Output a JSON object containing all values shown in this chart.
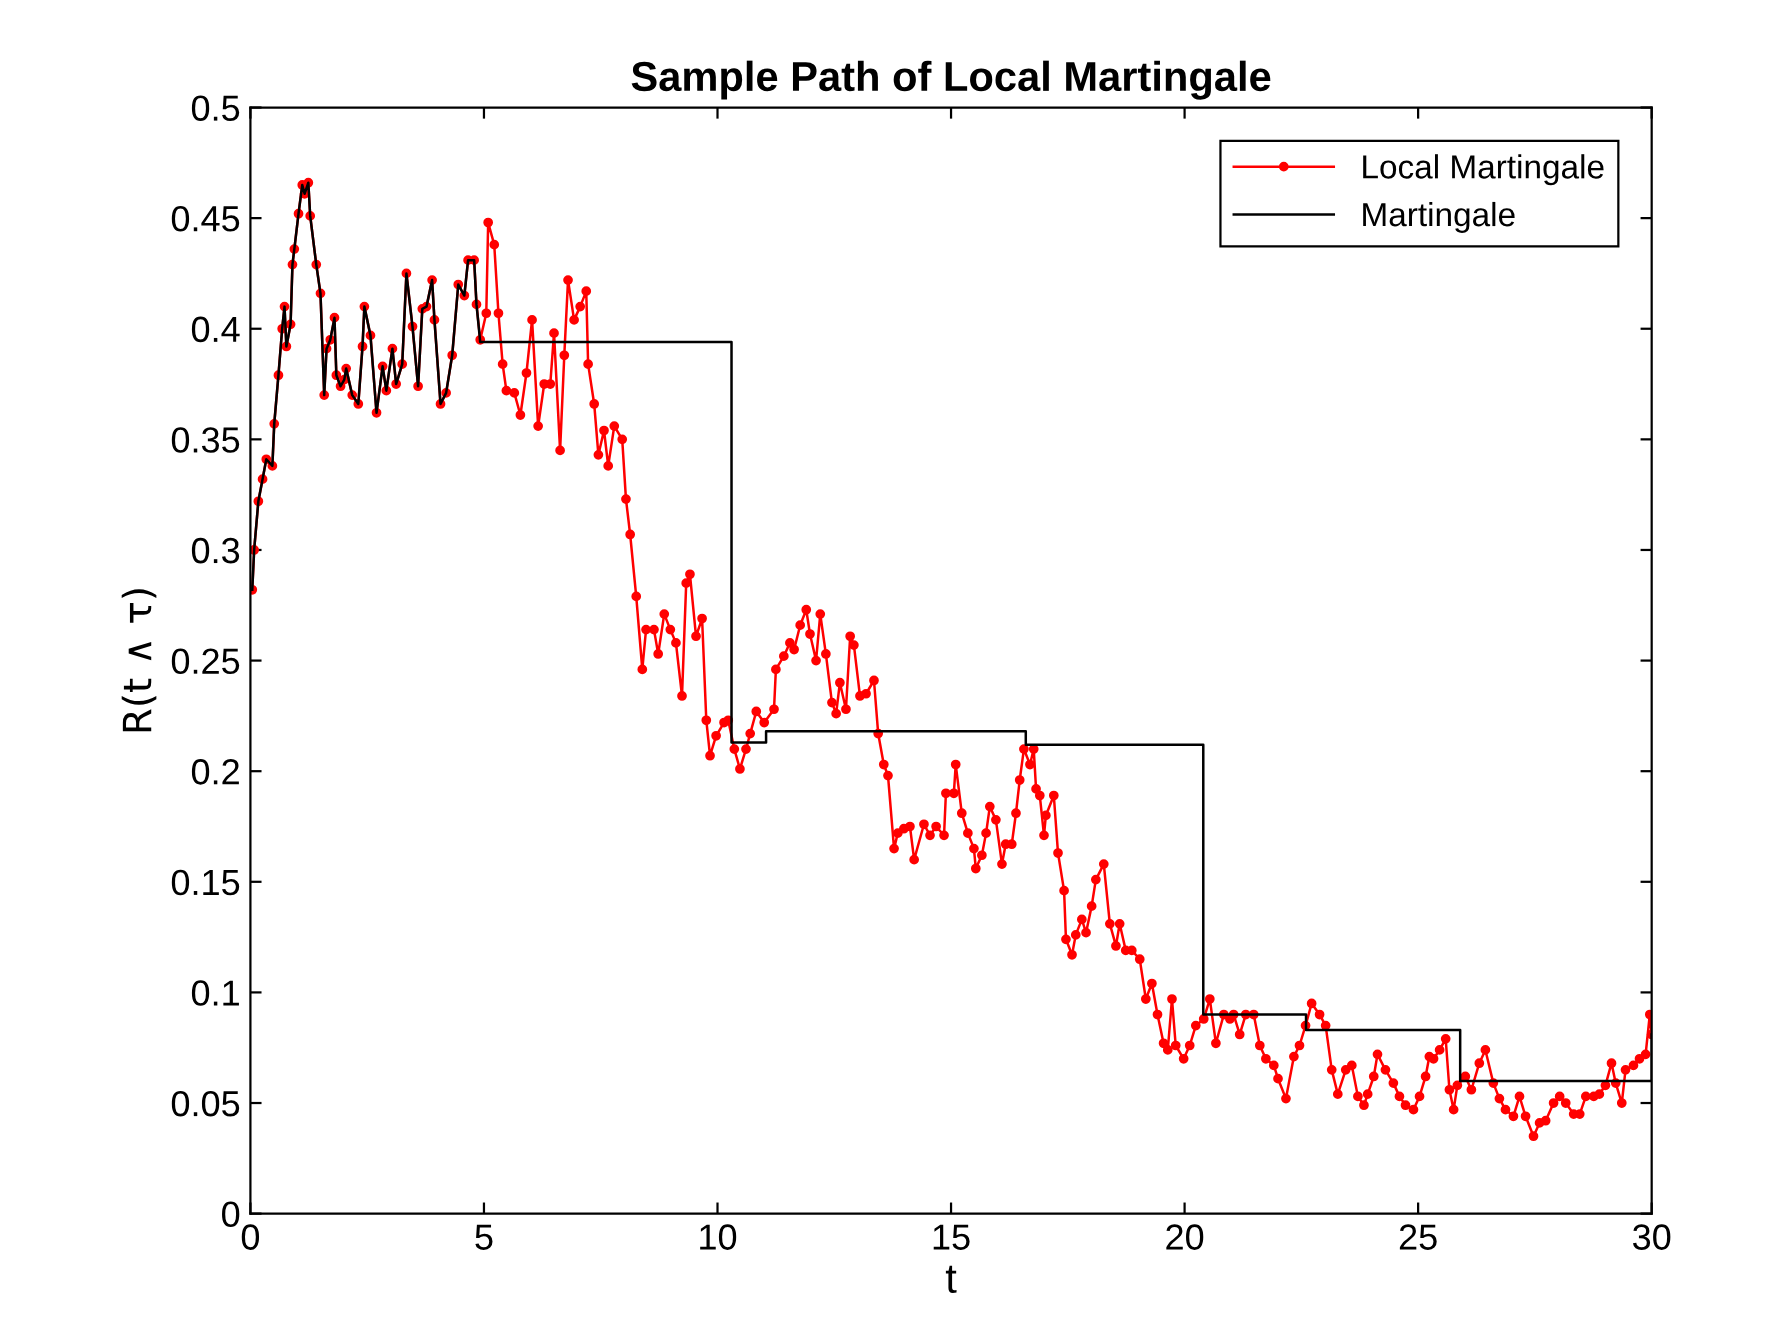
{
  "chart_data": {
    "type": "line",
    "title": "Sample Path of Local Martingale",
    "xlabel": "t",
    "ylabel": "R(t ∧ τ)",
    "xlim": [
      0,
      30
    ],
    "xticks": [
      0,
      5,
      10,
      15,
      20,
      25,
      30
    ],
    "ylim": [
      0,
      0.5
    ],
    "yticks": [
      0,
      0.05,
      0.1,
      0.15,
      0.2,
      0.25,
      0.3,
      0.35,
      0.4,
      0.45,
      0.5
    ],
    "grid": false,
    "legend": "top right",
    "series": [
      {
        "name": "Local Martingale",
        "color": "#ff0000",
        "marker": "circle",
        "line_style": "solid",
        "x": [
          0.04,
          0.08,
          0.17,
          0.26,
          0.34,
          0.47,
          0.51,
          0.6,
          0.68,
          0.73,
          0.77,
          0.86,
          0.9,
          0.94,
          1.03,
          1.11,
          1.16,
          1.24,
          1.28,
          1.41,
          1.5,
          1.58,
          1.63,
          1.71,
          1.8,
          1.84,
          1.93,
          2.01,
          2.05,
          2.18,
          2.31,
          2.4,
          2.44,
          2.57,
          2.7,
          2.83,
          2.91,
          3.04,
          3.12,
          3.25,
          3.34,
          3.47,
          3.59,
          3.68,
          3.77,
          3.89,
          3.94,
          4.07,
          4.19,
          4.32,
          4.45,
          4.58,
          4.66,
          4.79,
          4.84,
          4.92,
          5.05,
          5.09,
          5.22,
          5.31,
          5.4,
          5.48,
          5.65,
          5.78,
          5.91,
          6.03,
          6.16,
          6.29,
          6.42,
          6.5,
          6.63,
          6.72,
          6.8,
          6.93,
          7.06,
          7.19,
          7.23,
          7.36,
          7.45,
          7.57,
          7.66,
          7.79,
          7.96,
          8.04,
          8.13,
          8.26,
          8.39,
          8.47,
          8.64,
          8.73,
          8.86,
          8.99,
          9.11,
          9.24,
          9.33,
          9.41,
          9.54,
          9.67,
          9.76,
          9.84,
          9.97,
          10.14,
          10.23,
          10.36,
          10.48,
          10.61,
          10.7,
          10.83,
          11.0,
          11.21,
          11.25,
          11.42,
          11.55,
          11.64,
          11.77,
          11.9,
          11.98,
          12.11,
          12.2,
          12.32,
          12.45,
          12.54,
          12.62,
          12.75,
          12.84,
          12.92,
          13.05,
          13.18,
          13.35,
          13.44,
          13.56,
          13.65,
          13.78,
          13.86,
          13.99,
          14.12,
          14.21,
          14.42,
          14.55,
          14.68,
          14.85,
          14.89,
          15.06,
          15.1,
          15.23,
          15.36,
          15.49,
          15.53,
          15.66,
          15.75,
          15.83,
          15.96,
          16.09,
          16.17,
          16.3,
          16.39,
          16.47,
          16.56,
          16.69,
          16.77,
          16.82,
          16.9,
          16.99,
          17.03,
          17.2,
          17.29,
          17.42,
          17.46,
          17.59,
          17.67,
          17.8,
          17.89,
          18.01,
          18.1,
          18.27,
          18.4,
          18.53,
          18.61,
          18.74,
          18.87,
          19.04,
          19.17,
          19.3,
          19.42,
          19.55,
          19.64,
          19.73,
          19.81,
          19.98,
          20.11,
          20.24,
          20.41,
          20.54,
          20.67,
          20.84,
          20.97,
          21.05,
          21.18,
          21.31,
          21.48,
          21.61,
          21.74,
          21.91,
          22.0,
          22.17,
          22.34,
          22.46,
          22.59,
          22.72,
          22.89,
          23.02,
          23.15,
          23.28,
          23.45,
          23.58,
          23.71,
          23.84,
          23.92,
          24.05,
          24.13,
          24.3,
          24.47,
          24.6,
          24.73,
          24.9,
          25.03,
          25.16,
          25.24,
          25.33,
          25.46,
          25.59,
          25.67,
          25.76,
          25.84,
          26.01,
          26.14,
          26.31,
          26.44,
          26.61,
          26.74,
          26.87,
          27.04,
          27.17,
          27.3,
          27.47,
          27.6,
          27.73,
          27.9,
          28.03,
          28.16,
          28.33,
          28.46,
          28.59,
          28.76,
          28.88,
          29.01,
          29.14,
          29.23,
          29.36,
          29.44,
          29.61,
          29.74,
          29.87,
          29.96,
          30
        ],
        "values": [
          0.282,
          0.3,
          0.322,
          0.332,
          0.341,
          0.338,
          0.357,
          0.379,
          0.4,
          0.41,
          0.392,
          0.402,
          0.429,
          0.436,
          0.452,
          0.465,
          0.461,
          0.466,
          0.451,
          0.429,
          0.416,
          0.37,
          0.391,
          0.395,
          0.405,
          0.379,
          0.374,
          0.377,
          0.382,
          0.37,
          0.366,
          0.392,
          0.41,
          0.397,
          0.362,
          0.383,
          0.372,
          0.391,
          0.375,
          0.384,
          0.425,
          0.401,
          0.374,
          0.409,
          0.41,
          0.422,
          0.404,
          0.366,
          0.371,
          0.388,
          0.42,
          0.415,
          0.431,
          0.431,
          0.411,
          0.395,
          0.407,
          0.448,
          0.438,
          0.407,
          0.384,
          0.372,
          0.371,
          0.361,
          0.38,
          0.404,
          0.356,
          0.375,
          0.375,
          0.398,
          0.345,
          0.388,
          0.422,
          0.404,
          0.41,
          0.417,
          0.384,
          0.366,
          0.343,
          0.354,
          0.338,
          0.356,
          0.35,
          0.323,
          0.307,
          0.279,
          0.246,
          0.264,
          0.264,
          0.253,
          0.271,
          0.264,
          0.258,
          0.234,
          0.285,
          0.289,
          0.261,
          0.269,
          0.223,
          0.207,
          0.216,
          0.222,
          0.223,
          0.21,
          0.201,
          0.21,
          0.217,
          0.227,
          0.222,
          0.228,
          0.246,
          0.252,
          0.258,
          0.255,
          0.266,
          0.273,
          0.262,
          0.25,
          0.271,
          0.253,
          0.231,
          0.226,
          0.24,
          0.228,
          0.261,
          0.257,
          0.234,
          0.235,
          0.241,
          0.217,
          0.203,
          0.198,
          0.165,
          0.172,
          0.174,
          0.175,
          0.16,
          0.176,
          0.171,
          0.175,
          0.171,
          0.19,
          0.19,
          0.203,
          0.181,
          0.172,
          0.165,
          0.156,
          0.162,
          0.172,
          0.184,
          0.178,
          0.158,
          0.167,
          0.167,
          0.181,
          0.196,
          0.21,
          0.203,
          0.21,
          0.192,
          0.189,
          0.171,
          0.18,
          0.189,
          0.163,
          0.146,
          0.124,
          0.117,
          0.126,
          0.133,
          0.127,
          0.139,
          0.151,
          0.158,
          0.131,
          0.121,
          0.131,
          0.119,
          0.119,
          0.115,
          0.097,
          0.104,
          0.09,
          0.077,
          0.074,
          0.097,
          0.076,
          0.07,
          0.076,
          0.085,
          0.088,
          0.097,
          0.077,
          0.09,
          0.088,
          0.09,
          0.081,
          0.09,
          0.09,
          0.076,
          0.07,
          0.067,
          0.061,
          0.052,
          0.071,
          0.076,
          0.085,
          0.095,
          0.09,
          0.085,
          0.065,
          0.054,
          0.065,
          0.067,
          0.053,
          0.049,
          0.054,
          0.062,
          0.072,
          0.065,
          0.059,
          0.053,
          0.049,
          0.047,
          0.053,
          0.062,
          0.071,
          0.07,
          0.074,
          0.079,
          0.056,
          0.047,
          0.058,
          0.062,
          0.056,
          0.068,
          0.074,
          0.059,
          0.052,
          0.047,
          0.044,
          0.053,
          0.044,
          0.035,
          0.041,
          0.042,
          0.05,
          0.053,
          0.05,
          0.045,
          0.045,
          0.053,
          0.053,
          0.054,
          0.058,
          0.068,
          0.059,
          0.05,
          0.065,
          0.067,
          0.07,
          0.072,
          0.09,
          0.081
        ]
      },
      {
        "name": "Martingale",
        "color": "#000000",
        "marker": "none",
        "line_style": "solid",
        "x": [
          0.04,
          0.08,
          0.17,
          0.26,
          0.34,
          0.47,
          0.51,
          0.6,
          0.68,
          0.73,
          0.77,
          0.86,
          0.9,
          0.94,
          1.03,
          1.11,
          1.16,
          1.24,
          1.28,
          1.41,
          1.5,
          1.58,
          1.63,
          1.71,
          1.8,
          1.84,
          1.93,
          2.01,
          2.05,
          2.18,
          2.31,
          2.4,
          2.44,
          2.57,
          2.7,
          2.83,
          2.91,
          3.04,
          3.12,
          3.25,
          3.34,
          3.47,
          3.59,
          3.68,
          3.77,
          3.89,
          3.94,
          4.07,
          4.19,
          4.32,
          4.45,
          4.58,
          4.66,
          4.79,
          4.84,
          4.92,
          10.3,
          10.3,
          11.04,
          11.04,
          16.6,
          16.6,
          20.4,
          20.4,
          22.6,
          22.6,
          25.9,
          25.9,
          30,
          30
        ],
        "values": [
          0.282,
          0.3,
          0.322,
          0.332,
          0.341,
          0.338,
          0.357,
          0.379,
          0.4,
          0.41,
          0.392,
          0.402,
          0.429,
          0.436,
          0.452,
          0.465,
          0.461,
          0.466,
          0.451,
          0.429,
          0.416,
          0.37,
          0.391,
          0.395,
          0.405,
          0.379,
          0.374,
          0.377,
          0.382,
          0.37,
          0.366,
          0.392,
          0.41,
          0.397,
          0.362,
          0.383,
          0.372,
          0.391,
          0.375,
          0.384,
          0.425,
          0.401,
          0.374,
          0.409,
          0.41,
          0.422,
          0.404,
          0.366,
          0.371,
          0.388,
          0.42,
          0.415,
          0.431,
          0.431,
          0.411,
          0.394,
          0.394,
          0.213,
          0.213,
          0.218,
          0.218,
          0.212,
          0.212,
          0.09,
          0.09,
          0.083,
          0.083,
          0.06,
          0.06,
          0.081
        ]
      }
    ]
  }
}
